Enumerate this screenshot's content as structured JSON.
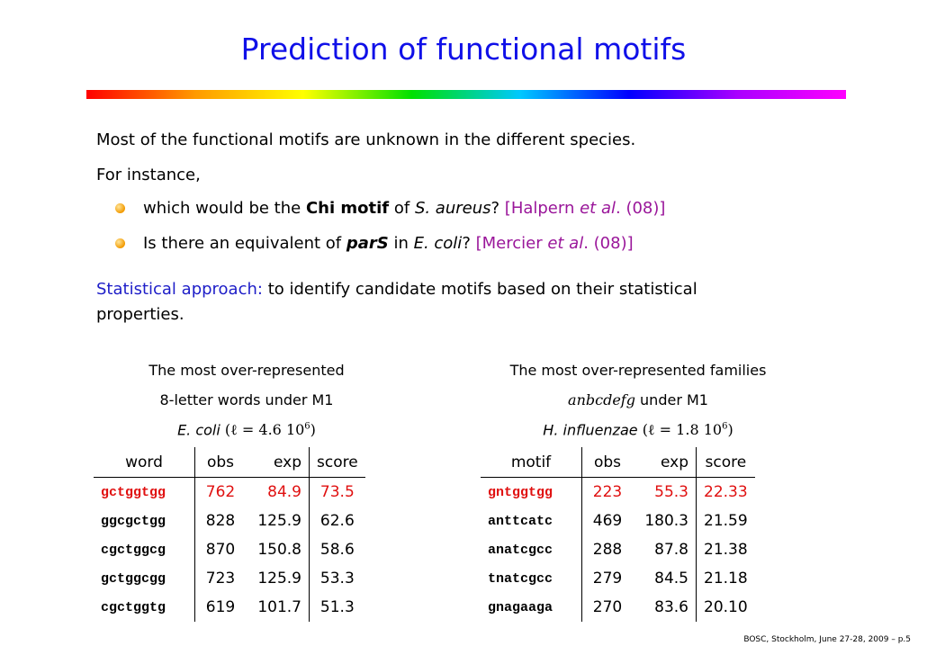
{
  "slide": {
    "title": "Prediction of functional motifs",
    "line1": "Most of the functional motifs are unknown in the different species.",
    "line2": "For instance,",
    "bullet1": {
      "pre": "which would be the ",
      "bold": "Chi motif",
      "mid": " of ",
      "species": "S. aureus",
      "post": "? ",
      "ref_pre": "[Halpern ",
      "ref_it": "et al",
      "ref_post": ". (08)]"
    },
    "bullet2": {
      "pre": "Is there an equivalent of ",
      "bold": "parS",
      "mid": " in ",
      "species": "E. coli",
      "post": "? ",
      "ref_pre": "[Mercier ",
      "ref_it": "et al",
      "ref_post": ". (08)]"
    },
    "approach_label": "Statistical approach:",
    "approach_text": " to identify candidate motifs based on their statistical",
    "approach_text2": "properties.",
    "footer": "BOSC, Stockholm, June 27-28, 2009 – p.5"
  },
  "left_table": {
    "caption1": "The most over-represented",
    "caption2": "8-letter words under M1",
    "species": "E. coli",
    "length_expr": "(ℓ = 4.6 10",
    "length_exp": "6",
    "length_close": ")",
    "headers": [
      "word",
      "obs",
      "exp",
      "score"
    ],
    "rows": [
      [
        "gctggtgg",
        "762",
        "84.9",
        "73.5"
      ],
      [
        "ggcgctgg",
        "828",
        "125.9",
        "62.6"
      ],
      [
        "cgctggcg",
        "870",
        "150.8",
        "58.6"
      ],
      [
        "gctggcgg",
        "723",
        "125.9",
        "53.3"
      ],
      [
        "cgctggtg",
        "619",
        "101.7",
        "51.3"
      ]
    ]
  },
  "right_table": {
    "caption1": "The most over-represented families",
    "caption2_math": "anbcdefg",
    "caption2_text": " under M1",
    "species": "H. influenzae",
    "length_expr": "(ℓ = 1.8 10",
    "length_exp": "6",
    "length_close": ")",
    "headers": [
      "motif",
      "obs",
      "exp",
      "score"
    ],
    "rows": [
      [
        "gntggtgg",
        "223",
        "55.3",
        "22.33"
      ],
      [
        "anttcatc",
        "469",
        "180.3",
        "21.59"
      ],
      [
        "anatcgcc",
        "288",
        "87.8",
        "21.38"
      ],
      [
        "tnatcgcc",
        "279",
        "84.5",
        "21.18"
      ],
      [
        "gnagaaga",
        "270",
        "83.6",
        "20.10"
      ]
    ]
  },
  "colors": {
    "title": "#1010e8",
    "highlight_row": "#e01010",
    "approach_label": "#1e1ec8",
    "reference": "#9a169a"
  }
}
